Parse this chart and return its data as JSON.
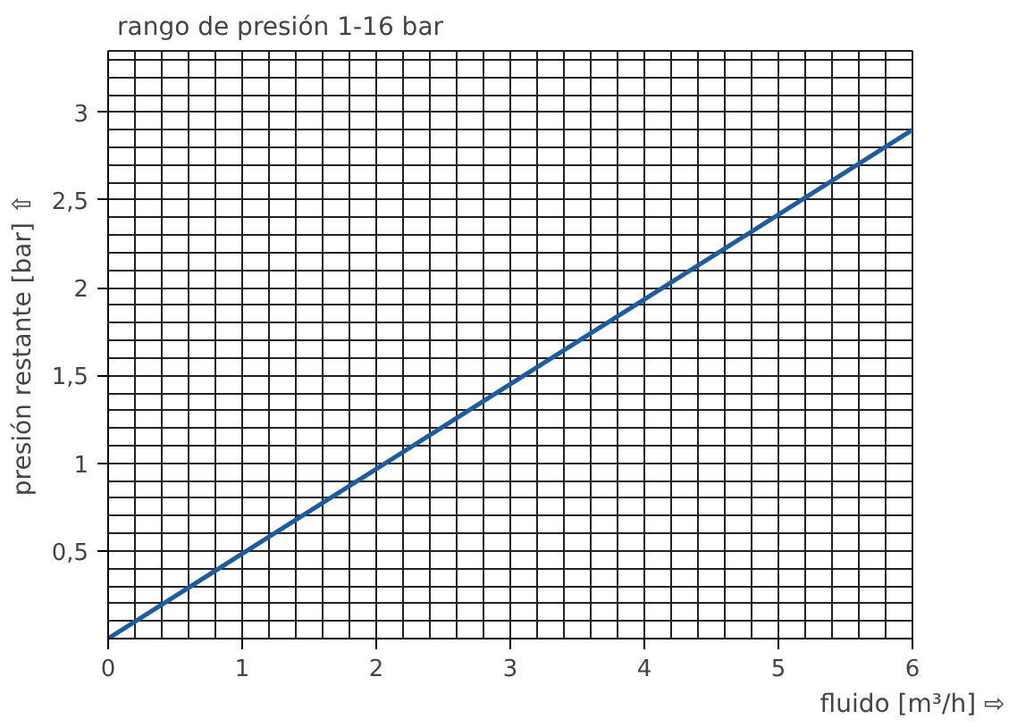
{
  "chart_data": {
    "type": "line",
    "title": "rango de presión 1-16 bar",
    "xlabel": "fluido [m³/h] ⇨",
    "ylabel": "presión restante [bar] ⇧",
    "x": [
      0,
      6
    ],
    "series": [
      {
        "color": "#1f5c9e",
        "values": [
          0,
          2.9
        ]
      }
    ],
    "xlim": [
      0,
      6
    ],
    "ylim": [
      0,
      3.35
    ],
    "xticks": [
      0,
      1,
      2,
      3,
      4,
      5,
      6
    ],
    "yticks": [
      {
        "value": 0.5,
        "label": "0,5"
      },
      1,
      {
        "value": 1.5,
        "label": "1,5"
      },
      2,
      {
        "value": 2.5,
        "label": "2,5"
      },
      3
    ],
    "grid": true,
    "marker": "none",
    "line_style": "solid"
  }
}
